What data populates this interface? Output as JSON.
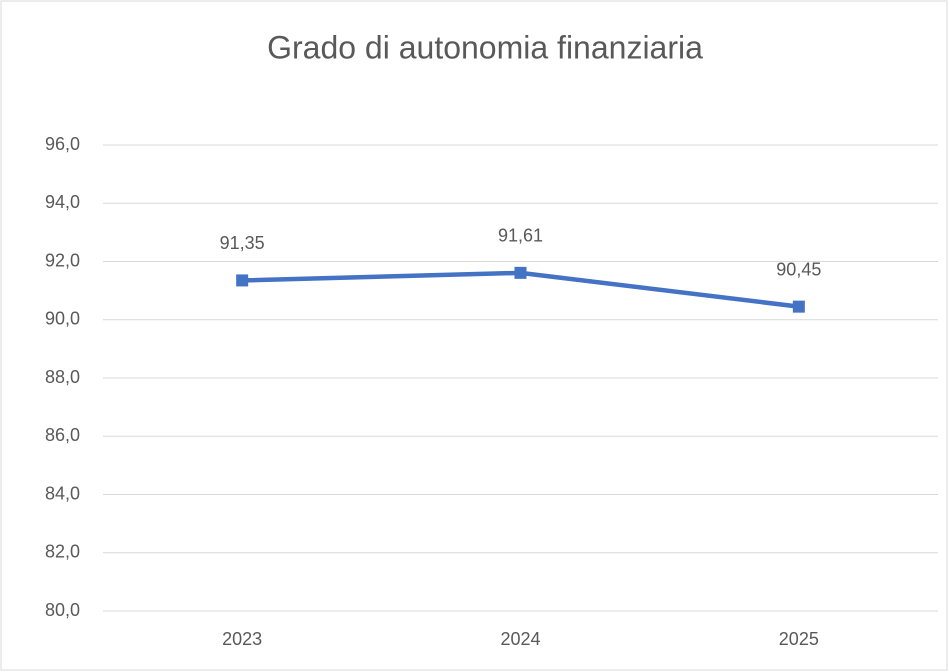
{
  "chart_data": {
    "type": "line",
    "title": "Grado di autonomia finanziaria",
    "categories": [
      "2023",
      "2024",
      "2025"
    ],
    "values": [
      91.35,
      91.61,
      90.45
    ],
    "value_labels": [
      "91,35",
      "91,61",
      "90,45"
    ],
    "color": "#4472c4",
    "ylim": [
      80,
      96
    ],
    "yticks": [
      {
        "value": 80,
        "label": "80,0"
      },
      {
        "value": 82,
        "label": "82,0"
      },
      {
        "value": 84,
        "label": "84,0"
      },
      {
        "value": 86,
        "label": "86,0"
      },
      {
        "value": 88,
        "label": "88,0"
      },
      {
        "value": 90,
        "label": "90,0"
      },
      {
        "value": 92,
        "label": "92,0"
      },
      {
        "value": 94,
        "label": "94,0"
      },
      {
        "value": 96,
        "label": "96,0"
      }
    ],
    "grid": true
  }
}
